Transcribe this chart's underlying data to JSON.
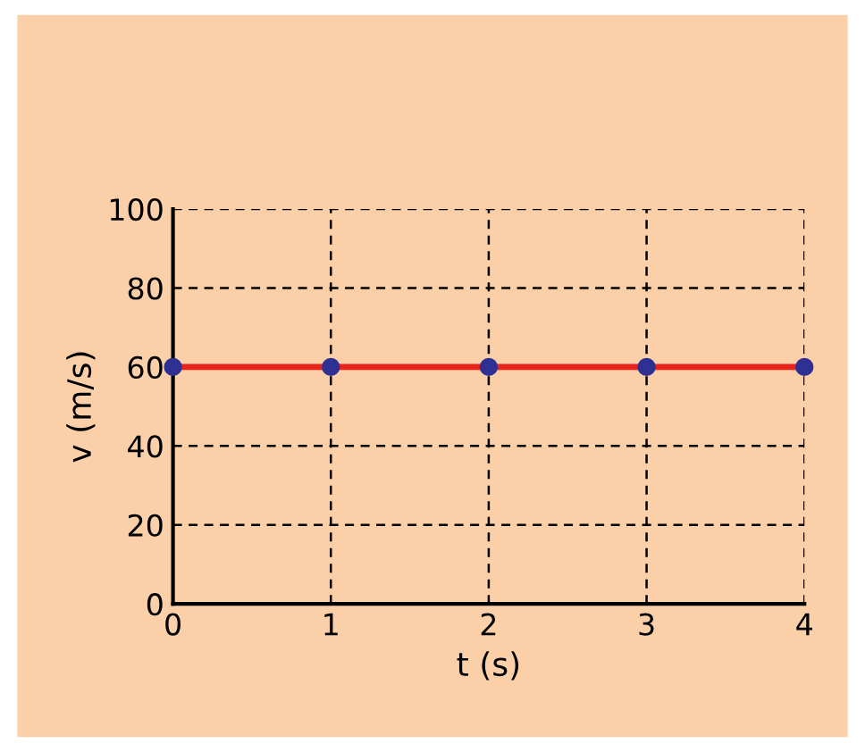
{
  "chart_data": {
    "type": "line",
    "xlabel": "t (s)",
    "ylabel": "v (m/s)",
    "x": [
      0,
      1,
      2,
      3,
      4
    ],
    "series": [
      {
        "color": "#e8231c",
        "values": [
          60,
          60,
          60,
          60,
          60
        ]
      },
      {
        "type": "scatter",
        "marker": "circle",
        "color": "#2e3192",
        "values": [
          60,
          60,
          60,
          60,
          60
        ]
      }
    ],
    "line_style": "solid",
    "xlim": [
      0,
      4
    ],
    "xticks": [
      0,
      1,
      2,
      3,
      4
    ],
    "ylim": [
      0,
      100
    ],
    "yticks": [
      0,
      20,
      40,
      60,
      80,
      100
    ],
    "grid": true
  }
}
